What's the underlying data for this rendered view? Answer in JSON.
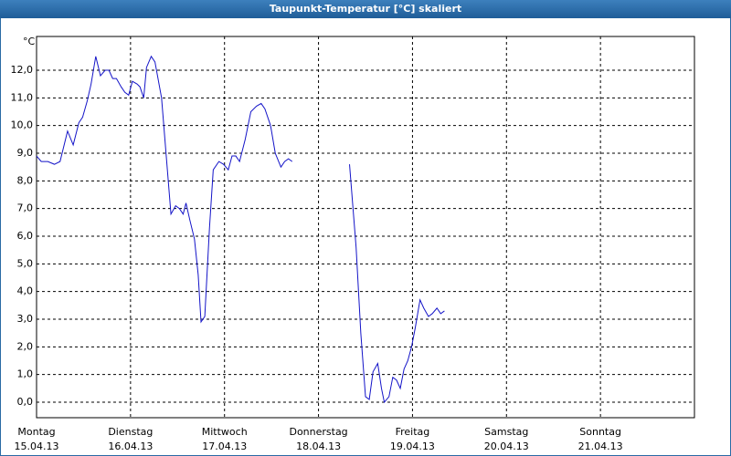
{
  "chart_data": {
    "type": "line",
    "title": "Taupunkt-Temperatur [°C] skaliert",
    "y_unit": "°C",
    "x": [
      0,
      0.05,
      0.12,
      0.19,
      0.25,
      0.33,
      0.39,
      0.45,
      0.49,
      0.54,
      0.58,
      0.63,
      0.68,
      0.73,
      0.77,
      0.81,
      0.85,
      0.9,
      0.94,
      0.98,
      1.02,
      1.07,
      1.1,
      1.14,
      1.17,
      1.22,
      1.26,
      1.33,
      1.38,
      1.43,
      1.48,
      1.52,
      1.56,
      1.59,
      1.63,
      1.68,
      1.72,
      1.75,
      1.79,
      1.84,
      1.88,
      1.94,
      1.99,
      2.04,
      2.08,
      2.12,
      2.16,
      2.22,
      2.28,
      2.34,
      2.39,
      2.43,
      2.49,
      2.54,
      2.6,
      2.64,
      2.68,
      2.72,
      3.0,
      3.33,
      3.4,
      3.45,
      3.5,
      3.54,
      3.58,
      3.63,
      3.67,
      3.7,
      3.75,
      3.79,
      3.83,
      3.87,
      3.91,
      3.95,
      3.99,
      4.03,
      4.08,
      4.12,
      4.17,
      4.21,
      4.26,
      4.3,
      4.34
    ],
    "series": [
      {
        "name": "Taupunkt",
        "color": "#1414c8",
        "values": [
          8.9,
          8.7,
          8.7,
          8.6,
          8.7,
          9.8,
          9.3,
          10.1,
          10.3,
          10.9,
          11.5,
          12.5,
          11.8,
          12.0,
          12.0,
          11.7,
          11.7,
          11.4,
          11.2,
          11.1,
          11.6,
          11.5,
          11.4,
          11.0,
          12.1,
          12.5,
          12.3,
          11.0,
          8.9,
          6.8,
          7.1,
          7.0,
          6.8,
          7.2,
          6.6,
          5.9,
          4.6,
          2.9,
          3.1,
          6.3,
          8.4,
          8.7,
          8.6,
          8.4,
          8.9,
          8.9,
          8.7,
          9.5,
          10.5,
          10.7,
          10.8,
          10.6,
          10.0,
          9.0,
          8.5,
          8.7,
          8.8,
          8.7,
          null,
          8.6,
          5.6,
          2.5,
          0.2,
          0.1,
          1.1,
          1.4,
          0.5,
          0.0,
          0.2,
          0.9,
          0.8,
          0.5,
          1.2,
          1.5,
          2.0,
          2.7,
          3.7,
          3.4,
          3.1,
          3.2,
          3.4,
          3.2,
          3.3
        ]
      }
    ],
    "xlim": [
      0,
      7
    ],
    "ylim": [
      -0.56,
      13.22
    ],
    "xticks": [
      {
        "value": 0,
        "label": "Montag"
      },
      {
        "value": 1,
        "label": "Dienstag"
      },
      {
        "value": 2,
        "label": "Mittwoch"
      },
      {
        "value": 3,
        "label": "Donnerstag"
      },
      {
        "value": 4,
        "label": "Freitag"
      },
      {
        "value": 5,
        "label": "Samstag"
      },
      {
        "value": 6,
        "label": "Sonntag"
      }
    ],
    "xtick_dates": [
      "15.04.13",
      "16.04.13",
      "17.04.13",
      "18.04.13",
      "19.04.13",
      "20.04.13",
      "21.04.13"
    ],
    "yticks": [
      {
        "value": 0,
        "label": "0,0"
      },
      {
        "value": 1,
        "label": "1,0"
      },
      {
        "value": 2,
        "label": "2,0"
      },
      {
        "value": 3,
        "label": "3,0"
      },
      {
        "value": 4,
        "label": "4,0"
      },
      {
        "value": 5,
        "label": "5,0"
      },
      {
        "value": 6,
        "label": "6,0"
      },
      {
        "value": 7,
        "label": "7,0"
      },
      {
        "value": 8,
        "label": "8,0"
      },
      {
        "value": 9,
        "label": "9,0"
      },
      {
        "value": 10,
        "label": "10,0"
      },
      {
        "value": 11,
        "label": "11,0"
      },
      {
        "value": 12,
        "label": "12,0"
      }
    ],
    "grid": true
  }
}
